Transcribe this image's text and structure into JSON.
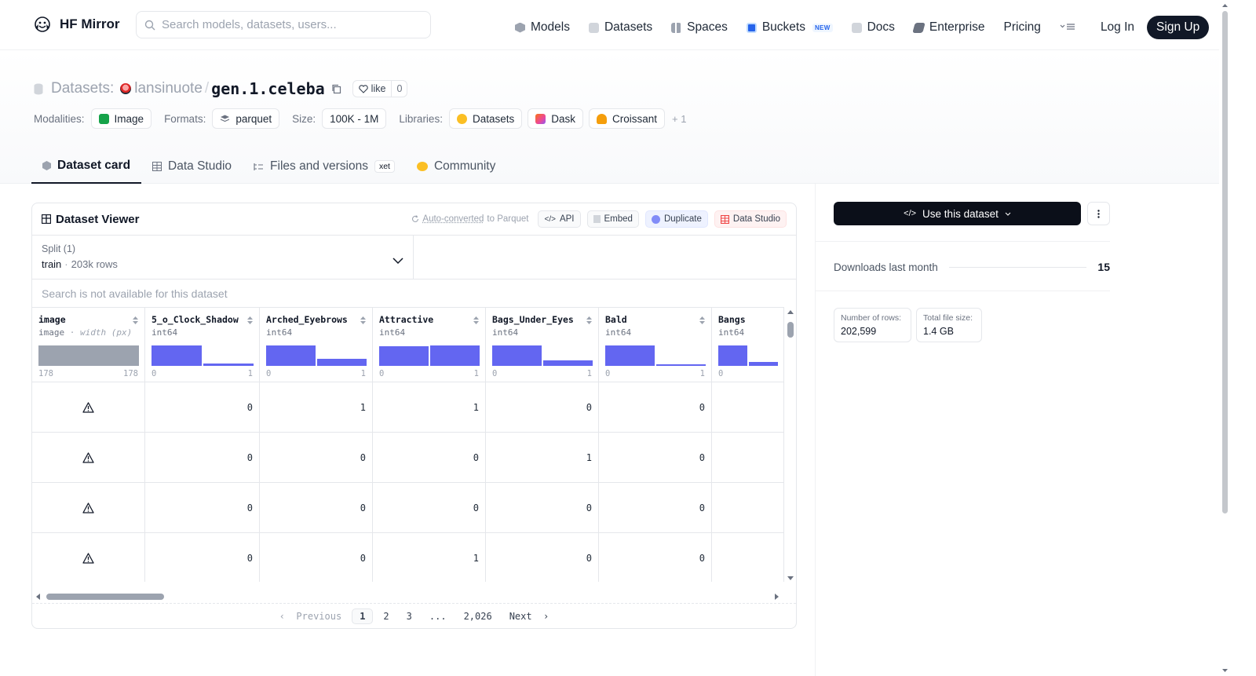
{
  "nav": {
    "brand": "HF Mirror",
    "search_placeholder": "Search models, datasets, users...",
    "links": [
      {
        "label": "Models",
        "icon": "cube-icon"
      },
      {
        "label": "Datasets",
        "icon": "database-icon"
      },
      {
        "label": "Spaces",
        "icon": "grid-icon"
      },
      {
        "label": "Buckets",
        "icon": "bucket-icon",
        "badge": "NEW"
      },
      {
        "label": "Docs",
        "icon": "book-icon"
      },
      {
        "label": "Enterprise",
        "icon": "enterprise-icon"
      },
      {
        "label": "Pricing"
      }
    ],
    "login": "Log In",
    "signup": "Sign Up"
  },
  "dataset": {
    "prefix": "Datasets:",
    "owner": "lansinuote",
    "name": "gen.1.celeba",
    "like_label": "like",
    "like_count": "0"
  },
  "meta": {
    "modalities_label": "Modalities:",
    "modalities": [
      "Image"
    ],
    "formats_label": "Formats:",
    "formats": [
      "parquet"
    ],
    "size_label": "Size:",
    "size": "100K - 1M",
    "libraries_label": "Libraries:",
    "libraries": [
      "Datasets",
      "Dask",
      "Croissant"
    ],
    "more": "+ 1"
  },
  "tabs": [
    {
      "label": "Dataset card",
      "active": true
    },
    {
      "label": "Data Studio"
    },
    {
      "label": "Files and versions",
      "badge": "xet"
    },
    {
      "label": "Community"
    }
  ],
  "viewer": {
    "title": "Dataset Viewer",
    "auto_converted_link": "Auto-converted",
    "auto_converted_rest": "to Parquet",
    "buttons": [
      "API",
      "Embed",
      "Duplicate",
      "Data Studio"
    ],
    "split_label": "Split (1)",
    "split_value": "train",
    "split_rows": "203k rows",
    "search_na": "Search is not available for this dataset",
    "columns": [
      {
        "name": "image",
        "type": "image",
        "type_extra": "width (px)",
        "min": "178",
        "max": "178",
        "hist": [
          1.0
        ]
      },
      {
        "name": "5_o_Clock_Shadow",
        "type": "int64",
        "min": "0",
        "max": "1",
        "hist": [
          1.0,
          0.12
        ]
      },
      {
        "name": "Arched_Eyebrows",
        "type": "int64",
        "min": "0",
        "max": "1",
        "hist": [
          1.0,
          0.36
        ]
      },
      {
        "name": "Attractive",
        "type": "int64",
        "min": "0",
        "max": "1",
        "hist": [
          0.95,
          1.0
        ]
      },
      {
        "name": "Bags_Under_Eyes",
        "type": "int64",
        "min": "0",
        "max": "1",
        "hist": [
          1.0,
          0.26
        ]
      },
      {
        "name": "Bald",
        "type": "int64",
        "min": "0",
        "max": "1",
        "hist": [
          1.0,
          0.03
        ]
      },
      {
        "name": "Bangs",
        "type": "int64",
        "min": "0",
        "max": "",
        "hist": [
          1.0,
          0.18
        ]
      }
    ],
    "rows": [
      [
        "0",
        "1",
        "1",
        "0",
        "0",
        ""
      ],
      [
        "0",
        "0",
        "0",
        "1",
        "0",
        ""
      ],
      [
        "0",
        "0",
        "0",
        "0",
        "0",
        ""
      ],
      [
        "0",
        "0",
        "1",
        "0",
        "0",
        ""
      ]
    ],
    "pager": {
      "prev": "Previous",
      "pages": [
        "1",
        "2",
        "3",
        "...",
        "2,026"
      ],
      "next": "Next"
    }
  },
  "sidebar": {
    "use_button": "Use this dataset",
    "downloads_label": "Downloads last month",
    "downloads_value": "15",
    "rows_label": "Number of rows:",
    "rows_value": "202,599",
    "filesize_label": "Total file size:",
    "filesize_value": "1.4 GB"
  },
  "colors": {
    "accent": "#6366f1",
    "dark": "#111827",
    "muted": "#6b7280"
  }
}
